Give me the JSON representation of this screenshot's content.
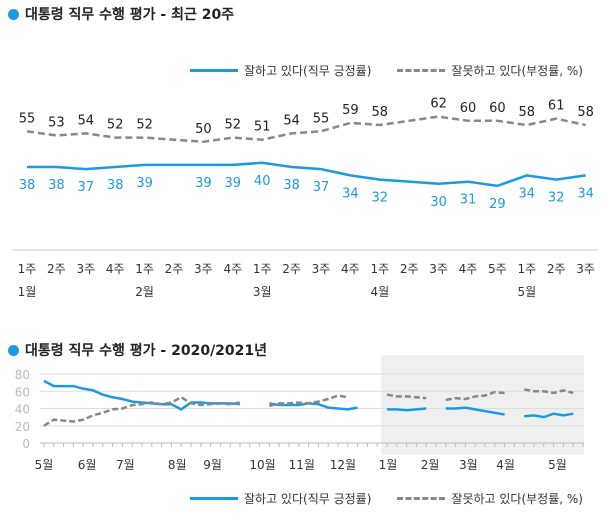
{
  "colors": {
    "approve": "#1a9be0",
    "disapprove": "#888888",
    "shade": "#efefef",
    "grid": "#dddddd",
    "axis": "#bbbbbb"
  },
  "legend": {
    "approve": "잘하고 있다(직무 긍정률)",
    "disapprove": "잘못하고 있다(부정률, %)"
  },
  "chart_data": [
    {
      "type": "line",
      "title": "대통령 직무 수행 평가 - 최근 20주",
      "categories": [
        "1주",
        "2주",
        "3주",
        "4주",
        "1주",
        "2주",
        "3주",
        "4주",
        "1주",
        "2주",
        "3주",
        "4주",
        "1주",
        "2주",
        "3주",
        "4주",
        "5주",
        "1주",
        "2주",
        "3주"
      ],
      "month_labels": [
        {
          "label": "1월",
          "index": 0
        },
        {
          "label": "2월",
          "index": 4
        },
        {
          "label": "3월",
          "index": 8
        },
        {
          "label": "4월",
          "index": 12
        },
        {
          "label": "5월",
          "index": 17
        }
      ],
      "series": [
        {
          "name": "잘하고 있다(직무 긍정률)",
          "values": [
            38,
            38,
            37,
            38,
            39,
            null,
            39,
            39,
            40,
            38,
            37,
            34,
            32,
            null,
            30,
            31,
            29,
            34,
            32,
            34
          ]
        },
        {
          "name": "잘못하고 있다(부정률, %)",
          "values": [
            55,
            53,
            54,
            52,
            52,
            null,
            50,
            52,
            51,
            54,
            55,
            59,
            58,
            null,
            62,
            60,
            60,
            58,
            61,
            58
          ]
        }
      ],
      "data_labels": true,
      "grid": false,
      "legend_position": "top-right"
    },
    {
      "type": "line",
      "title": "대통령 직무 수행 평가 - 2020/2021년",
      "ylim": [
        0,
        80
      ],
      "yticks": [
        0,
        20,
        40,
        60,
        80
      ],
      "grid": true,
      "legend_position": "bottom-right",
      "month_labels": [
        {
          "label": "5월",
          "week": 0
        },
        {
          "label": "6월",
          "week": 4.4
        },
        {
          "label": "7월",
          "week": 8.3
        },
        {
          "label": "8월",
          "week": 13.6
        },
        {
          "label": "9월",
          "week": 17.2
        },
        {
          "label": "10월",
          "week": 22.3
        },
        {
          "label": "11월",
          "week": 26.3
        },
        {
          "label": "12월",
          "week": 30.5
        },
        {
          "label": "1월",
          "week": 35.1
        },
        {
          "label": "2월",
          "week": 39.4
        },
        {
          "label": "3월",
          "week": 43.3
        },
        {
          "label": "4월",
          "week": 47.1
        },
        {
          "label": "5월",
          "week": 52.4
        }
      ],
      "shaded_from_week": 34,
      "series": [
        {
          "name": "잘하고 있다(직무 긍정률)",
          "values": [
            72,
            66,
            66,
            66,
            63,
            61,
            56,
            53,
            51,
            48,
            47,
            46,
            45,
            45,
            39,
            47,
            47,
            46,
            46,
            46,
            45,
            null,
            null,
            46,
            44,
            44,
            44,
            46,
            45,
            41,
            40,
            39,
            41,
            null,
            null,
            39,
            39,
            38,
            39,
            40,
            null,
            40,
            40,
            41,
            39,
            37,
            35,
            33,
            null,
            31,
            32,
            30,
            34,
            32,
            34
          ]
        },
        {
          "name": "잘못하고 있다(부정률, %)",
          "values": [
            20,
            27,
            26,
            25,
            27,
            32,
            35,
            39,
            40,
            44,
            45,
            47,
            45,
            47,
            53,
            46,
            44,
            45,
            46,
            45,
            47,
            null,
            null,
            43,
            46,
            46,
            47,
            46,
            48,
            51,
            55,
            53,
            null,
            null,
            null,
            56,
            54,
            54,
            53,
            52,
            null,
            50,
            52,
            51,
            54,
            55,
            59,
            58,
            null,
            62,
            60,
            60,
            58,
            61,
            58
          ]
        }
      ]
    }
  ]
}
